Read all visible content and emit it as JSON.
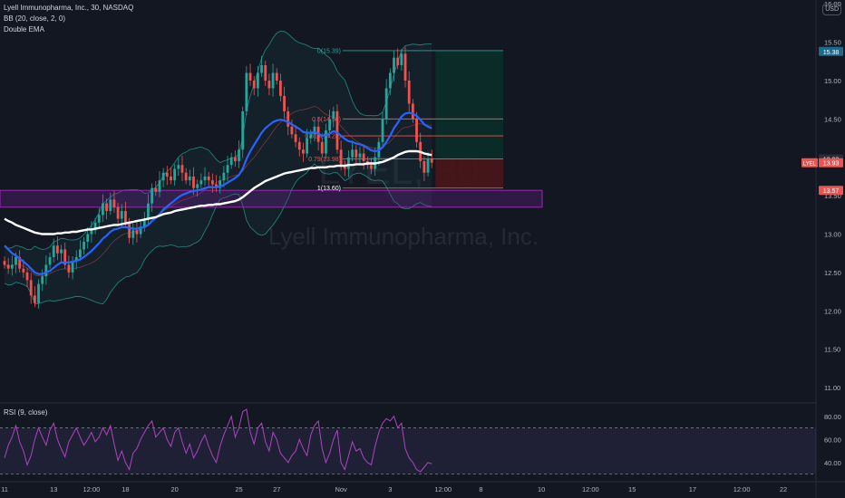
{
  "legend": {
    "title": "Lyell Immunopharma, Inc., 30, NASDAQ",
    "bb": "BB (20, close, 2, 0)",
    "ema": "Double EMA"
  },
  "rsi_label": "RSI (9, close)",
  "currency": "USD",
  "watermark": {
    "symbol": "LYEL, 30",
    "name": "Lyell Immunopharma, Inc."
  },
  "colors": {
    "background": "#131722",
    "up_candle": "#26a69a",
    "down_candle": "#ef5350",
    "bb_band": "#26a69a",
    "bb_basis": "#ef5350",
    "ema_fast": "#2962ff",
    "ema_slow": "#ffffff",
    "support_zone": "#7b1fa2",
    "fib_line": "#ef5350",
    "rsi_line": "#ab47bc",
    "target_zone": "#0b2e2a",
    "stop_zone": "#4a1618",
    "last_price_badge": "#ef5350",
    "top_badge": "#1e6a8d"
  },
  "chart_data": {
    "type": "candlestick",
    "symbol": "LYEL",
    "interval": "30",
    "exchange": "NASDAQ",
    "price_axis": {
      "ticks": [
        "11.00",
        "11.50",
        "12.00",
        "12.50",
        "13.00",
        "13.50",
        "14.00",
        "14.50",
        "15.00",
        "15.50",
        "16.00"
      ],
      "range": [
        10.8,
        16.05
      ],
      "badges": [
        {
          "label": "15.38",
          "value": 15.38,
          "type": "top"
        },
        {
          "label": "13.98",
          "value": 13.98,
          "type": "neutral"
        },
        {
          "label": "13.93",
          "value": 13.93,
          "type": "last",
          "tag": "LYEL"
        },
        {
          "label": "13.57",
          "value": 13.57,
          "type": "last"
        }
      ]
    },
    "time_axis": {
      "ticks": [
        {
          "label": "11",
          "i": 0
        },
        {
          "label": "13",
          "i": 13
        },
        {
          "label": "12:00",
          "i": 23
        },
        {
          "label": "18",
          "i": 32
        },
        {
          "label": "20",
          "i": 45
        },
        {
          "label": "25",
          "i": 62
        },
        {
          "label": "27",
          "i": 72
        },
        {
          "label": "Nov",
          "i": 89
        },
        {
          "label": "3",
          "i": 102
        },
        {
          "label": "12:00",
          "i": 116
        },
        {
          "label": "8",
          "i": 126
        },
        {
          "label": "10",
          "i": 142
        },
        {
          "label": "12:00",
          "i": 155
        },
        {
          "label": "15",
          "i": 166
        },
        {
          "label": "17",
          "i": 182
        },
        {
          "label": "12:00",
          "i": 195
        },
        {
          "label": "22",
          "i": 206
        }
      ]
    },
    "close": [
      12.6,
      12.55,
      12.6,
      12.7,
      12.55,
      12.5,
      12.4,
      12.2,
      12.1,
      12.35,
      12.45,
      12.6,
      12.7,
      12.85,
      12.75,
      12.8,
      12.6,
      12.5,
      12.65,
      12.7,
      12.8,
      12.9,
      13.0,
      13.05,
      13.15,
      13.25,
      13.4,
      13.3,
      13.45,
      13.35,
      13.2,
      13.3,
      13.15,
      12.95,
      13.05,
      13.0,
      13.1,
      13.2,
      13.4,
      13.6,
      13.55,
      13.7,
      13.8,
      13.75,
      13.7,
      13.85,
      13.9,
      13.8,
      13.7,
      13.75,
      13.6,
      13.65,
      13.7,
      13.75,
      13.7,
      13.65,
      13.6,
      13.7,
      13.8,
      13.9,
      14.0,
      13.95,
      14.1,
      14.6,
      15.1,
      15.0,
      14.9,
      15.1,
      15.2,
      15.0,
      14.9,
      15.1,
      15.0,
      14.8,
      14.6,
      14.4,
      14.3,
      14.2,
      14.1,
      14.05,
      14.25,
      14.3,
      14.4,
      14.2,
      14.05,
      14.35,
      14.5,
      14.6,
      14.1,
      13.9,
      13.85,
      14.0,
      14.1,
      14.0,
      14.05,
      13.95,
      13.9,
      13.85,
      14.0,
      14.2,
      14.5,
      14.9,
      15.1,
      15.3,
      15.2,
      15.35,
      15.0,
      14.7,
      14.5,
      14.2,
      13.95,
      13.8,
      13.98,
      13.93
    ],
    "ema_fast": [
      12.85,
      12.8,
      12.75,
      12.72,
      12.68,
      12.64,
      12.6,
      12.55,
      12.5,
      12.48,
      12.48,
      12.5,
      12.52,
      12.56,
      12.6,
      12.63,
      12.63,
      12.63,
      12.64,
      12.65,
      12.67,
      12.7,
      12.74,
      12.78,
      12.83,
      12.88,
      12.94,
      12.98,
      13.03,
      13.06,
      13.07,
      13.09,
      13.09,
      13.08,
      13.07,
      13.07,
      13.08,
      13.09,
      13.12,
      13.17,
      13.21,
      13.26,
      13.32,
      13.36,
      13.4,
      13.44,
      13.48,
      13.51,
      13.53,
      13.55,
      13.56,
      13.57,
      13.58,
      13.6,
      13.61,
      13.61,
      13.61,
      13.62,
      13.64,
      13.67,
      13.7,
      13.73,
      13.77,
      13.85,
      13.98,
      14.08,
      14.16,
      14.24,
      14.32,
      14.38,
      14.42,
      14.46,
      14.48,
      14.49,
      14.48,
      14.46,
      14.43,
      14.4,
      14.37,
      14.33,
      14.32,
      14.32,
      14.33,
      14.31,
      14.28,
      14.29,
      14.31,
      14.34,
      14.32,
      14.28,
      14.24,
      14.21,
      14.2,
      14.18,
      14.17,
      14.15,
      14.12,
      14.09,
      14.08,
      14.09,
      14.13,
      14.2,
      14.28,
      14.38,
      14.45,
      14.53,
      14.57,
      14.58,
      14.57,
      14.54,
      14.49,
      14.43,
      14.4,
      14.38
    ],
    "ema_slow": [
      13.2,
      13.17,
      13.15,
      13.12,
      13.1,
      13.08,
      13.06,
      13.04,
      13.02,
      13.01,
      13.0,
      13.0,
      13.0,
      13.0,
      13.01,
      13.01,
      13.02,
      13.02,
      13.03,
      13.03,
      13.04,
      13.05,
      13.06,
      13.06,
      13.07,
      13.08,
      13.09,
      13.1,
      13.11,
      13.12,
      13.12,
      13.13,
      13.14,
      13.15,
      13.16,
      13.17,
      13.18,
      13.19,
      13.2,
      13.21,
      13.22,
      13.24,
      13.26,
      13.27,
      13.28,
      13.3,
      13.31,
      13.32,
      13.33,
      13.34,
      13.35,
      13.36,
      13.37,
      13.37,
      13.38,
      13.38,
      13.39,
      13.39,
      13.4,
      13.41,
      13.42,
      13.43,
      13.45,
      13.48,
      13.52,
      13.56,
      13.6,
      13.63,
      13.66,
      13.69,
      13.71,
      13.73,
      13.75,
      13.77,
      13.79,
      13.8,
      13.81,
      13.82,
      13.83,
      13.84,
      13.85,
      13.86,
      13.86,
      13.87,
      13.87,
      13.87,
      13.88,
      13.88,
      13.89,
      13.89,
      13.89,
      13.9,
      13.9,
      13.91,
      13.91,
      13.91,
      13.92,
      13.92,
      13.92,
      13.93,
      13.94,
      13.96,
      13.98,
      14.0,
      14.03,
      14.05,
      14.07,
      14.08,
      14.08,
      14.08,
      14.07,
      14.05,
      14.04,
      14.03
    ],
    "support_zone": {
      "from": 13.35,
      "to": 13.57
    },
    "fibonacci": [
      {
        "label": "0(15.39)",
        "value": 15.39
      },
      {
        "label": "0.5(14.50)",
        "value": 14.5
      },
      {
        "label": "0.618(14.28)",
        "value": 14.28
      },
      {
        "label": "0.79(13.98)",
        "value": 13.98
      },
      {
        "label": "1(13.60)",
        "value": 13.6
      }
    ],
    "position_tool": {
      "entry": 13.98,
      "target": 15.39,
      "stop": 13.6
    },
    "rsi": {
      "ticks": [
        "40.00",
        "60.00",
        "80.00"
      ],
      "range": [
        25,
        90
      ],
      "upper": 70,
      "lower": 30,
      "values": [
        44,
        55,
        62,
        72,
        58,
        50,
        38,
        46,
        60,
        70,
        62,
        55,
        68,
        74,
        60,
        52,
        45,
        58,
        64,
        70,
        62,
        55,
        60,
        66,
        58,
        62,
        70,
        64,
        72,
        56,
        42,
        50,
        40,
        34,
        48,
        52,
        60,
        66,
        72,
        76,
        62,
        66,
        70,
        60,
        54,
        66,
        70,
        58,
        48,
        56,
        44,
        50,
        58,
        64,
        54,
        46,
        40,
        54,
        64,
        72,
        80,
        62,
        70,
        84,
        86,
        66,
        56,
        70,
        74,
        58,
        50,
        66,
        60,
        48,
        44,
        40,
        46,
        50,
        60,
        52,
        46,
        64,
        72,
        76,
        52,
        40,
        48,
        60,
        68,
        40,
        34,
        46,
        58,
        50,
        52,
        44,
        40,
        38,
        54,
        66,
        74,
        78,
        76,
        80,
        70,
        74,
        52,
        44,
        40,
        34,
        32,
        36,
        40,
        39
      ]
    }
  }
}
